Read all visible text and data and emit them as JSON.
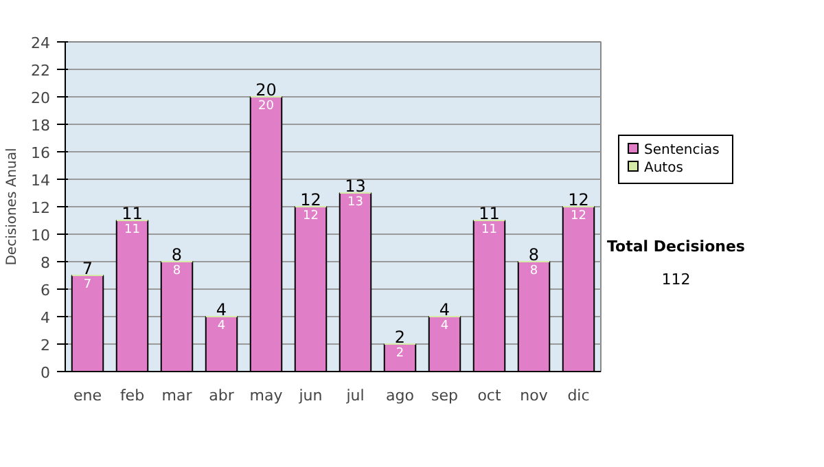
{
  "chart_data": {
    "type": "bar",
    "stacked": true,
    "ylabel": "Decisiones Anual",
    "categories": [
      "ene",
      "feb",
      "mar",
      "abr",
      "may",
      "jun",
      "jul",
      "ago",
      "sep",
      "oct",
      "nov",
      "dic"
    ],
    "series": [
      {
        "name": "Sentencias",
        "color": "#e07fc8",
        "values": [
          7,
          11,
          8,
          4,
          20,
          12,
          13,
          2,
          4,
          11,
          8,
          12
        ],
        "value_labels": [
          "7",
          "11",
          "8",
          "4",
          "20",
          "12",
          "13",
          "2",
          "4",
          "11",
          "8",
          "12"
        ]
      },
      {
        "name": "Autos",
        "color": "#d6eaa8",
        "values": [
          0,
          0,
          0,
          0,
          0,
          0,
          0,
          0,
          0,
          0,
          0,
          0
        ]
      }
    ],
    "totals": [
      "7",
      "11",
      "8",
      "4",
      "20",
      "12",
      "13",
      "2",
      "4",
      "11",
      "8",
      "12"
    ],
    "ylim": [
      0,
      24
    ],
    "yticks": [
      0,
      2,
      4,
      6,
      8,
      10,
      12,
      14,
      16,
      18,
      20,
      22,
      24
    ],
    "grid": "y",
    "legend": "right",
    "annotations": [
      "Total Decisiones",
      "112"
    ]
  }
}
